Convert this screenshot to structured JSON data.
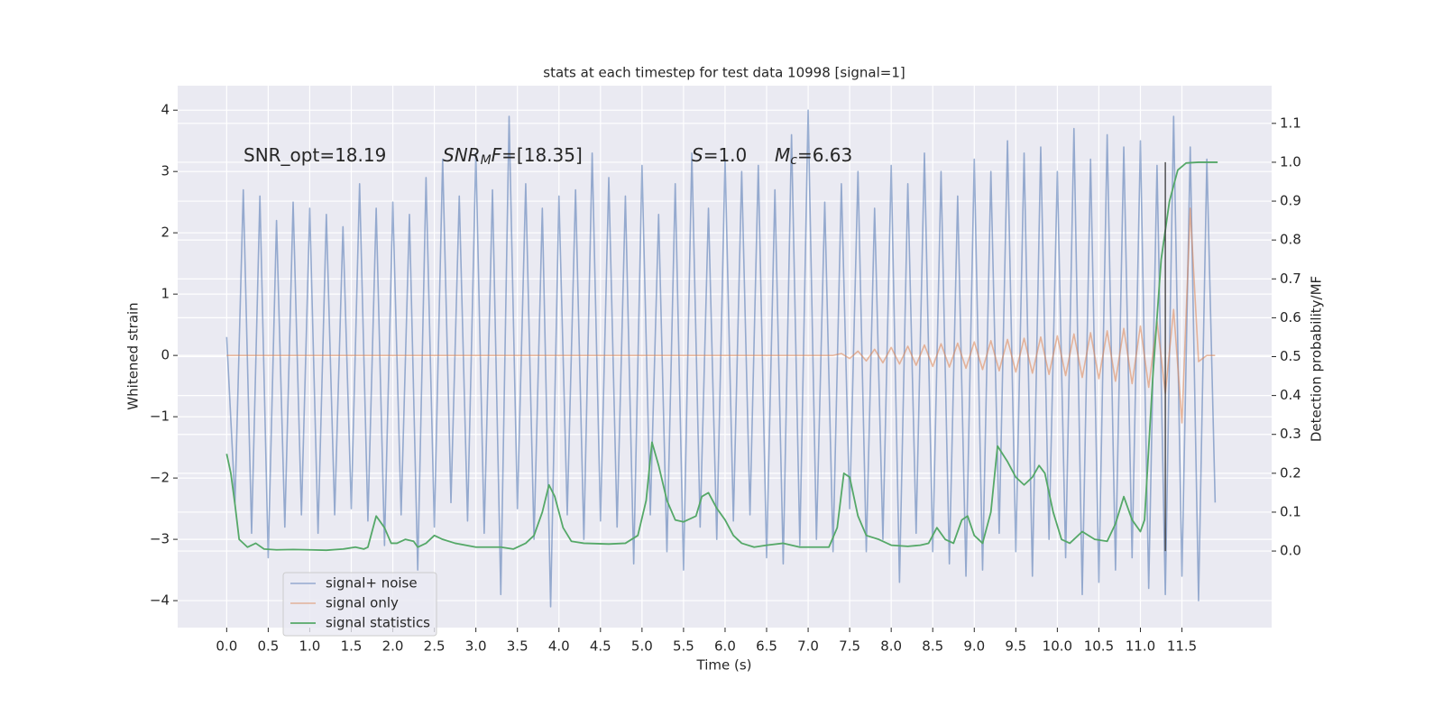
{
  "chart_data": {
    "type": "line",
    "title": "stats at each timestep for test data 10998 [signal=1]",
    "xlabel": "Time (s)",
    "ylabel": "Whitened strain",
    "y2label": "Detection probability/MF",
    "annotations": [
      [
        "SNR_opt=18.19"
      ],
      [
        "SNR",
        "M",
        "F",
        "=[18.35]"
      ],
      [
        "S",
        "=1.0"
      ],
      [
        "M",
        "c",
        "=6.63"
      ]
    ],
    "xlim": [
      -0.59,
      12.58
    ],
    "ylim": [
      -4.44,
      4.4
    ],
    "y2lim": [
      -0.197,
      1.197
    ],
    "xticks": [
      {
        "value": 0,
        "label": "0.0"
      },
      0.5,
      {
        "value": 1,
        "label": "1.0"
      },
      1.5,
      {
        "value": 2,
        "label": "2.0"
      },
      2.5,
      {
        "value": 3,
        "label": "3.0"
      },
      3.5,
      {
        "value": 4,
        "label": "4.0"
      },
      4.5,
      {
        "value": 5,
        "label": "5.0"
      },
      5.5,
      {
        "value": 6,
        "label": "6.0"
      },
      6.5,
      {
        "value": 7,
        "label": "7.0"
      },
      7.5,
      {
        "value": 8,
        "label": "8.0"
      },
      8.5,
      {
        "value": 9,
        "label": "9.0"
      },
      9.5,
      {
        "value": 10,
        "label": "10.0"
      },
      10.5,
      {
        "value": 11,
        "label": "11.0"
      },
      11.5
    ],
    "yticks": [
      {
        "value": -4,
        "label": "−4"
      },
      {
        "value": -3,
        "label": "−3"
      },
      {
        "value": -2,
        "label": "−2"
      },
      {
        "value": -1,
        "label": "−1"
      },
      0,
      1,
      2,
      3,
      4
    ],
    "y2ticks": [
      {
        "value": 0,
        "label": "0.0"
      },
      0.1,
      0.2,
      0.3,
      0.4,
      0.5,
      0.6,
      0.7,
      0.8,
      0.9,
      {
        "value": 1,
        "label": "1.0"
      },
      1.1
    ],
    "grid": true,
    "legend": "lower left",
    "series": [
      {
        "name": "signal+ noise",
        "color": "#4c72b0",
        "x": [
          0.0,
          0.1,
          0.2,
          0.3,
          0.4,
          0.5,
          0.6,
          0.7,
          0.8,
          0.9,
          1.0,
          1.1,
          1.2,
          1.3,
          1.4,
          1.5,
          1.6,
          1.7,
          1.8,
          1.9,
          2.0,
          2.1,
          2.2,
          2.3,
          2.4,
          2.5,
          2.6,
          2.7,
          2.8,
          2.9,
          3.0,
          3.1,
          3.2,
          3.3,
          3.4,
          3.5,
          3.6,
          3.7,
          3.8,
          3.9,
          4.0,
          4.1,
          4.2,
          4.3,
          4.4,
          4.5,
          4.6,
          4.7,
          4.8,
          4.9,
          5.0,
          5.1,
          5.2,
          5.3,
          5.4,
          5.5,
          5.6,
          5.7,
          5.8,
          5.9,
          6.0,
          6.1,
          6.2,
          6.3,
          6.4,
          6.5,
          6.6,
          6.7,
          6.8,
          6.9,
          7.0,
          7.1,
          7.2,
          7.3,
          7.4,
          7.5,
          7.6,
          7.7,
          7.8,
          7.9,
          8.0,
          8.1,
          8.2,
          8.3,
          8.4,
          8.5,
          8.6,
          8.7,
          8.8,
          8.9,
          9.0,
          9.1,
          9.2,
          9.3,
          9.4,
          9.5,
          9.6,
          9.7,
          9.8,
          9.9,
          10.0,
          10.1,
          10.2,
          10.3,
          10.4,
          10.5,
          10.6,
          10.7,
          10.8,
          10.9,
          11.0,
          11.1,
          11.2,
          11.3,
          11.4,
          11.5,
          11.6,
          11.7,
          11.8,
          11.9
        ],
        "values": [
          0.3,
          -2.4,
          2.7,
          -2.9,
          2.6,
          -3.3,
          2.2,
          -2.8,
          2.5,
          -2.6,
          2.4,
          -2.9,
          2.3,
          -2.6,
          2.1,
          -2.5,
          2.8,
          -2.7,
          2.4,
          -3.1,
          2.5,
          -2.6,
          2.3,
          -3.5,
          2.9,
          -2.8,
          3.2,
          -2.4,
          2.6,
          -2.7,
          3.3,
          -2.9,
          2.7,
          -3.9,
          3.9,
          -2.5,
          2.8,
          -3.0,
          2.4,
          -4.1,
          2.6,
          -2.6,
          2.7,
          -3.0,
          3.3,
          -2.7,
          2.9,
          -2.8,
          2.6,
          -3.4,
          3.1,
          -2.6,
          2.3,
          -3.2,
          2.8,
          -3.5,
          3.3,
          -2.8,
          2.4,
          -3.0,
          3.2,
          -2.7,
          3.0,
          -2.6,
          3.1,
          -3.3,
          2.7,
          -3.4,
          3.6,
          -3.1,
          4.0,
          -3.0,
          2.5,
          -3.2,
          2.8,
          -2.5,
          3.0,
          -3.2,
          2.4,
          -3.0,
          3.1,
          -3.7,
          2.8,
          -2.9,
          3.3,
          -3.2,
          3.0,
          -3.4,
          2.6,
          -3.6,
          3.2,
          -3.5,
          3.0,
          -2.9,
          3.5,
          -3.2,
          3.3,
          -3.6,
          3.4,
          -3.0,
          3.0,
          -3.3,
          3.7,
          -3.9,
          3.2,
          -3.7,
          3.6,
          -3.5,
          3.4,
          -3.3,
          3.5,
          -3.8,
          3.1,
          -3.9,
          3.9,
          -3.6,
          3.4,
          -4.0,
          3.2,
          -2.4
        ]
      },
      {
        "name": "signal only",
        "color": "#dd8452",
        "x": [
          0.0,
          0.1,
          0.2,
          0.3,
          0.4,
          0.5,
          0.6,
          0.7,
          0.8,
          0.9,
          1.0,
          1.1,
          1.2,
          1.3,
          1.4,
          1.5,
          1.6,
          1.7,
          1.8,
          1.9,
          2.0,
          2.1,
          2.2,
          2.3,
          2.4,
          2.5,
          2.6,
          2.7,
          2.8,
          2.9,
          3.0,
          3.1,
          3.2,
          3.3,
          3.4,
          3.5,
          3.6,
          3.7,
          3.8,
          3.9,
          4.0,
          4.1,
          4.2,
          4.3,
          4.4,
          4.5,
          4.6,
          4.7,
          4.8,
          4.9,
          5.0,
          5.1,
          5.2,
          5.3,
          5.4,
          5.5,
          5.6,
          5.7,
          5.8,
          5.9,
          6.0,
          6.1,
          6.2,
          6.3,
          6.4,
          6.5,
          6.6,
          6.7,
          6.8,
          6.9,
          7.0,
          7.1,
          7.2,
          7.3,
          7.4,
          7.5,
          7.6,
          7.7,
          7.8,
          7.9,
          8.0,
          8.1,
          8.2,
          8.3,
          8.4,
          8.5,
          8.6,
          8.7,
          8.8,
          8.9,
          9.0,
          9.1,
          9.2,
          9.3,
          9.4,
          9.5,
          9.6,
          9.7,
          9.8,
          9.9,
          10.0,
          10.1,
          10.2,
          10.3,
          10.4,
          10.5,
          10.6,
          10.7,
          10.8,
          10.9,
          11.0,
          11.1,
          11.2,
          11.3,
          11.4,
          11.5,
          11.6,
          11.7,
          11.8,
          11.9
        ],
        "values": [
          0,
          0,
          0,
          0,
          0,
          0,
          0,
          0,
          0,
          0,
          0,
          0,
          0,
          0,
          0,
          0,
          0,
          0,
          0,
          0,
          0,
          0,
          0,
          0,
          0,
          0,
          0,
          0,
          0,
          0,
          0,
          0,
          0,
          0,
          0,
          0,
          0,
          0,
          0,
          0,
          0,
          0,
          0,
          0,
          0,
          0,
          0,
          0,
          0,
          0,
          0,
          0,
          0,
          0,
          0,
          0,
          0,
          0,
          0,
          0,
          0,
          0,
          0,
          0,
          0,
          0,
          0,
          0,
          0,
          0,
          0,
          0,
          0,
          0,
          0.03,
          -0.05,
          0.07,
          -0.09,
          0.1,
          -0.12,
          0.13,
          -0.14,
          0.15,
          -0.16,
          0.17,
          -0.18,
          0.19,
          -0.19,
          0.2,
          -0.21,
          0.22,
          -0.23,
          0.24,
          -0.25,
          0.26,
          -0.27,
          0.28,
          -0.29,
          0.3,
          -0.31,
          0.32,
          -0.33,
          0.35,
          -0.36,
          0.37,
          -0.38,
          0.4,
          -0.42,
          0.44,
          -0.46,
          0.48,
          -0.52,
          0.56,
          -0.62,
          0.75,
          -1.1,
          2.4,
          -0.1,
          0,
          0
        ]
      },
      {
        "name": "signal statistics",
        "color": "#55a868",
        "axis": "y2",
        "x": [
          0.0,
          0.05,
          0.1,
          0.15,
          0.25,
          0.35,
          0.45,
          0.6,
          0.8,
          1.0,
          1.2,
          1.4,
          1.55,
          1.65,
          1.7,
          1.8,
          1.9,
          1.98,
          2.05,
          2.15,
          2.25,
          2.3,
          2.4,
          2.5,
          2.6,
          2.75,
          3.0,
          3.3,
          3.45,
          3.6,
          3.7,
          3.8,
          3.88,
          3.95,
          4.05,
          4.15,
          4.3,
          4.6,
          4.8,
          4.95,
          5.05,
          5.12,
          5.2,
          5.3,
          5.4,
          5.5,
          5.65,
          5.72,
          5.8,
          5.9,
          6.0,
          6.1,
          6.2,
          6.35,
          6.5,
          6.7,
          6.9,
          7.1,
          7.25,
          7.35,
          7.43,
          7.5,
          7.6,
          7.7,
          7.85,
          8.0,
          8.2,
          8.35,
          8.45,
          8.55,
          8.65,
          8.75,
          8.85,
          8.92,
          9.0,
          9.1,
          9.2,
          9.28,
          9.4,
          9.5,
          9.6,
          9.7,
          9.78,
          9.85,
          9.95,
          10.05,
          10.15,
          10.3,
          10.45,
          10.6,
          10.7,
          10.8,
          10.9,
          11.0,
          11.05,
          11.15,
          11.25,
          11.35,
          11.45,
          11.55,
          11.7,
          11.93
        ],
        "values": [
          0.25,
          0.2,
          0.12,
          0.03,
          0.01,
          0.02,
          0.005,
          0.003,
          0.004,
          0.003,
          0.002,
          0.005,
          0.01,
          0.005,
          0.01,
          0.09,
          0.06,
          0.02,
          0.02,
          0.03,
          0.025,
          0.01,
          0.02,
          0.04,
          0.03,
          0.02,
          0.01,
          0.01,
          0.005,
          0.02,
          0.04,
          0.1,
          0.17,
          0.14,
          0.06,
          0.025,
          0.02,
          0.018,
          0.02,
          0.04,
          0.13,
          0.28,
          0.22,
          0.13,
          0.08,
          0.075,
          0.09,
          0.14,
          0.15,
          0.11,
          0.08,
          0.04,
          0.02,
          0.01,
          0.015,
          0.02,
          0.01,
          0.01,
          0.01,
          0.06,
          0.2,
          0.19,
          0.09,
          0.04,
          0.03,
          0.015,
          0.012,
          0.015,
          0.02,
          0.06,
          0.03,
          0.02,
          0.08,
          0.09,
          0.04,
          0.02,
          0.1,
          0.27,
          0.23,
          0.19,
          0.17,
          0.19,
          0.22,
          0.2,
          0.1,
          0.03,
          0.02,
          0.05,
          0.03,
          0.025,
          0.07,
          0.14,
          0.08,
          0.05,
          0.08,
          0.45,
          0.75,
          0.9,
          0.98,
          0.998,
          1.0,
          1.0
        ]
      }
    ],
    "vline": {
      "x": 11.3,
      "ymin": 0,
      "ymax": 1.0,
      "color": "#3a3a3a",
      "axis": "y2"
    }
  }
}
